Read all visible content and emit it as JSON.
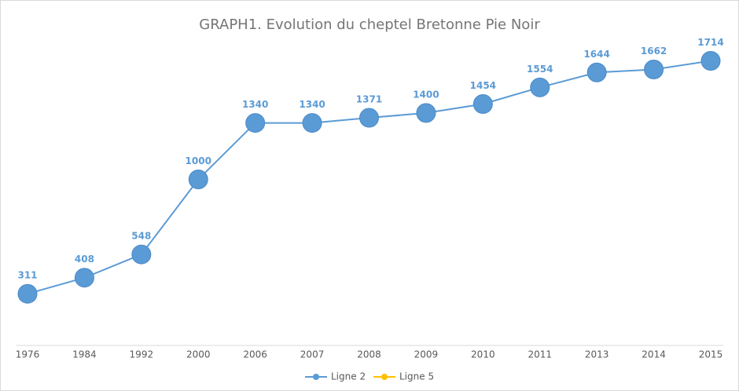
{
  "chart_data": {
    "type": "line",
    "title": "GRAPH1. Evolution du cheptel Bretonne Pie Noir",
    "categories": [
      "1976",
      "1984",
      "1992",
      "2000",
      "2006",
      "2007",
      "2008",
      "2009",
      "2010",
      "2011",
      "2013",
      "2014",
      "2015"
    ],
    "series": [
      {
        "name": "Ligne 2",
        "color": "#5b9bd5",
        "values": [
          311,
          408,
          548,
          1000,
          1340,
          1340,
          1371,
          1400,
          1454,
          1554,
          1644,
          1662,
          1714
        ]
      },
      {
        "name": "Ligne 5",
        "color": "#ffc000",
        "values": [
          null,
          null,
          null,
          null,
          null,
          null,
          null,
          null,
          null,
          null,
          null,
          null,
          null
        ]
      }
    ],
    "ylim": [
      0,
      2000
    ],
    "grid": false,
    "legend": "bottom"
  }
}
